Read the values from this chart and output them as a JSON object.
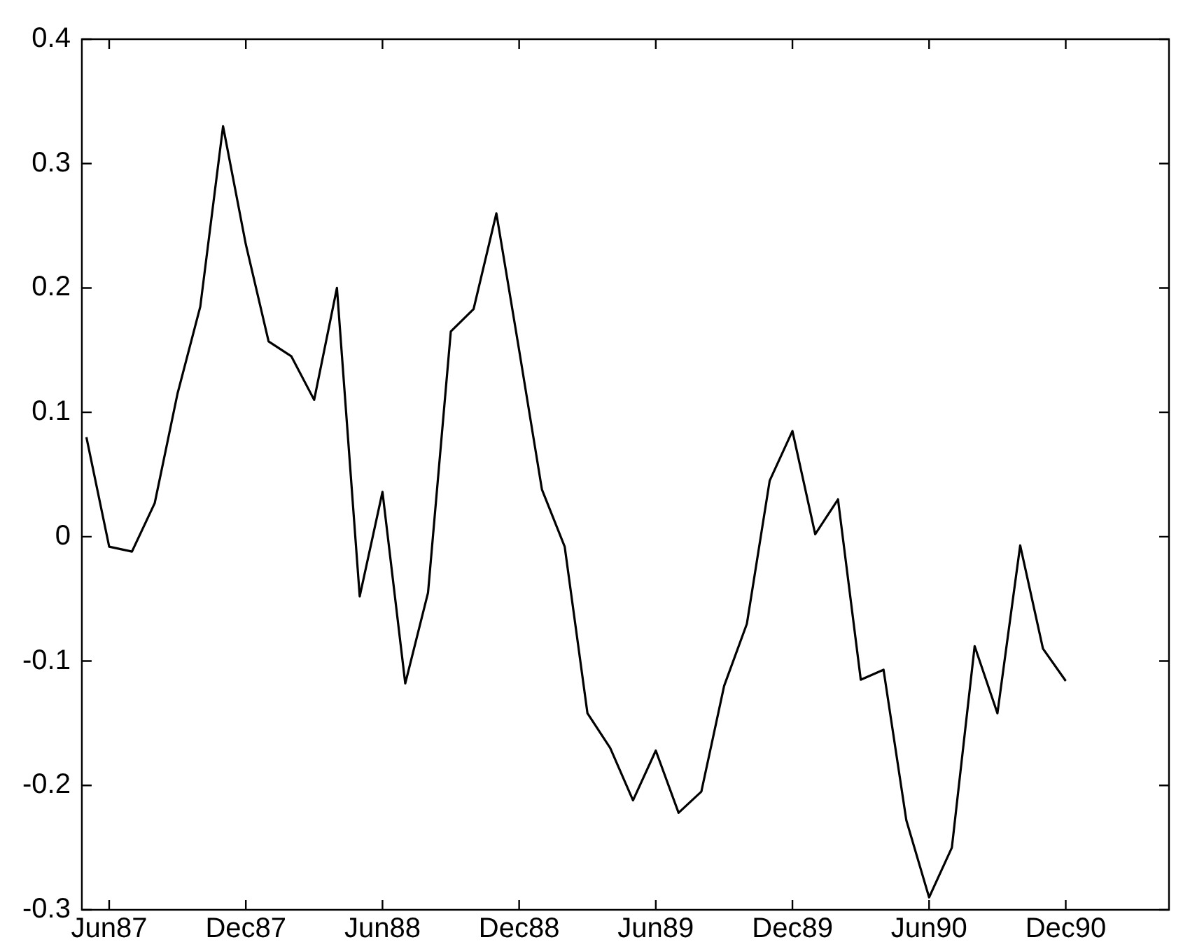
{
  "chart_data": {
    "type": "line",
    "x": [
      "1987-05",
      "1987-06",
      "1987-07",
      "1987-08",
      "1987-09",
      "1987-10",
      "1987-11",
      "1987-12",
      "1988-01",
      "1988-02",
      "1988-03",
      "1988-04",
      "1988-05",
      "1988-06",
      "1988-07",
      "1988-08",
      "1988-09",
      "1988-10",
      "1988-11",
      "1988-12",
      "1989-01",
      "1989-02",
      "1989-03",
      "1989-04",
      "1989-05",
      "1989-06",
      "1989-07",
      "1989-08",
      "1989-09",
      "1989-10",
      "1989-11",
      "1989-12",
      "1990-01",
      "1990-02",
      "1990-03",
      "1990-04",
      "1990-05",
      "1990-06",
      "1990-07",
      "1990-08",
      "1990-09",
      "1990-10",
      "1990-11",
      "1990-12"
    ],
    "series": [
      {
        "color": "#000000",
        "values": [
          0.08,
          -0.008,
          -0.012,
          0.027,
          0.115,
          0.185,
          0.33,
          0.235,
          0.157,
          0.145,
          0.11,
          0.2,
          -0.048,
          0.036,
          -0.118,
          -0.045,
          0.165,
          0.183,
          0.26,
          0.15,
          0.038,
          -0.008,
          -0.142,
          -0.17,
          -0.212,
          -0.172,
          -0.222,
          -0.205,
          -0.12,
          -0.07,
          0.045,
          0.085,
          0.002,
          0.03,
          -0.115,
          -0.107,
          -0.228,
          -0.29,
          -0.25,
          -0.088,
          -0.142,
          -0.007,
          -0.09,
          -0.116
        ]
      }
    ],
    "xlim": [
      "1987-04-25",
      "1991-04-17"
    ],
    "xticks": [
      {
        "value": "1987-06",
        "label": "Jun87"
      },
      {
        "value": "1987-12",
        "label": "Dec87"
      },
      {
        "value": "1988-06",
        "label": "Jun88"
      },
      {
        "value": "1988-12",
        "label": "Dec88"
      },
      {
        "value": "1989-06",
        "label": "Jun89"
      },
      {
        "value": "1989-12",
        "label": "Dec89"
      },
      {
        "value": "1990-06",
        "label": "Jun90"
      },
      {
        "value": "1990-12",
        "label": "Dec90"
      }
    ],
    "ylim": [
      -0.3,
      0.4
    ],
    "yticks": [
      -0.3,
      -0.2,
      -0.1,
      0,
      0.1,
      0.2,
      0.3,
      0.4
    ],
    "grid": false,
    "legend": false,
    "marker": "none",
    "line_style": "solid"
  }
}
